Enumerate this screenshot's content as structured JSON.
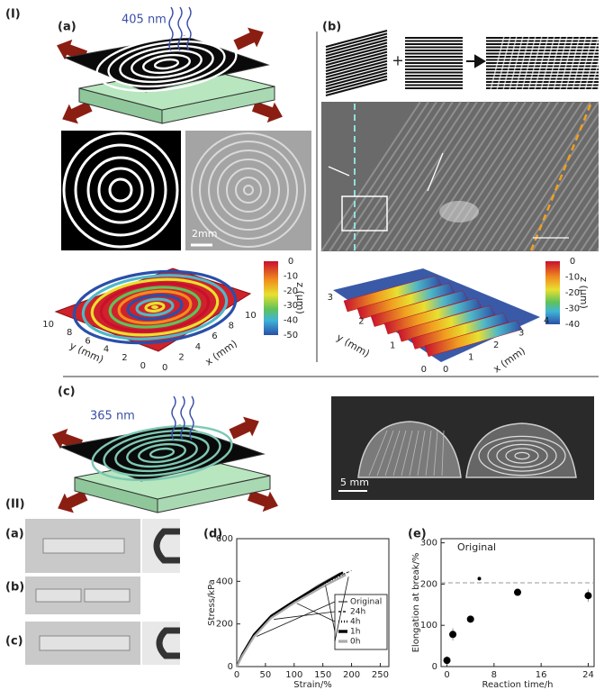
{
  "part_I": {
    "label": "(I)",
    "panel_a": {
      "label": "(a)",
      "wavelength": "405 nm",
      "scale_bar": "2mm",
      "colorbar": {
        "ticks": [
          0,
          -10,
          -20,
          -30,
          -40,
          -50
        ],
        "label": "z (μm)"
      },
      "y_axis": {
        "label": "y (mm)",
        "ticks": [
          0,
          2,
          4,
          6,
          8,
          10
        ]
      },
      "x_axis": {
        "label": "x (mm)",
        "ticks": [
          0,
          2,
          4,
          6,
          8,
          10
        ]
      }
    },
    "panel_b": {
      "label": "(b)",
      "plus_sign": "+",
      "colorbar": {
        "ticks": [
          0,
          -10,
          -20,
          -30,
          -40
        ],
        "label": "z (μm)"
      },
      "y_axis": {
        "label": "y (mm)",
        "ticks": [
          0,
          1,
          2,
          3
        ]
      },
      "x_axis": {
        "label": "x (mm)",
        "ticks": [
          0,
          1,
          2,
          3,
          4
        ]
      }
    },
    "panel_c": {
      "label": "(c)",
      "wavelength": "365 nm",
      "scale_bar": "5 mm"
    }
  },
  "part_II": {
    "label": "(II)",
    "photo_labels": [
      "(a)",
      "(b)",
      "(c)"
    ],
    "chart_labels": [
      "(d)",
      "(e)"
    ]
  },
  "chart_data": [
    {
      "type": "line",
      "x_label": "Strain/%",
      "y_label": "Stress/kPa",
      "xlim": [
        0,
        265
      ],
      "ylim": [
        0,
        600
      ],
      "xticks": [
        0,
        50,
        100,
        150,
        200,
        250
      ],
      "yticks": [
        0,
        200,
        400,
        600
      ],
      "legend": "right",
      "series": [
        {
          "name": "Original",
          "color": "#888888",
          "x": [
            0,
            10,
            30,
            60,
            100,
            140,
            180
          ],
          "values": [
            0,
            60,
            150,
            240,
            310,
            380,
            440
          ]
        },
        {
          "name": "24h",
          "color": "#555555",
          "x": [
            0,
            10,
            30,
            60,
            100,
            150,
            200
          ],
          "values": [
            0,
            55,
            145,
            230,
            300,
            390,
            450
          ]
        },
        {
          "name": "4h",
          "color": "#111111",
          "x": [
            0,
            10,
            30,
            60,
            100,
            150,
            195
          ],
          "values": [
            0,
            58,
            148,
            235,
            305,
            385,
            445
          ]
        },
        {
          "name": "1h",
          "color": "#000000",
          "x": [
            0,
            10,
            30,
            60,
            100,
            150,
            185
          ],
          "values": [
            0,
            60,
            150,
            238,
            308,
            388,
            442
          ]
        },
        {
          "name": "0h",
          "color": "#aaaaaa",
          "x": [
            0,
            10,
            30,
            60,
            100,
            150,
            190
          ],
          "values": [
            0,
            52,
            140,
            228,
            298,
            375,
            430
          ]
        }
      ]
    },
    {
      "type": "scatter",
      "x_label": "Reaction time/h",
      "y_label": "Elongation at break/%",
      "xlim": [
        -1,
        25
      ],
      "ylim": [
        0,
        310
      ],
      "xticks": [
        0,
        8,
        16,
        24
      ],
      "yticks": [
        0,
        100,
        200,
        300
      ],
      "color": "#000000",
      "x": [
        0,
        1,
        4,
        12,
        24
      ],
      "values": [
        15,
        78,
        115,
        180,
        172
      ],
      "errors": [
        10,
        15,
        5,
        5,
        15
      ],
      "reference": {
        "label": "Original",
        "value": 203,
        "x": 5.5,
        "point": 213
      }
    }
  ]
}
